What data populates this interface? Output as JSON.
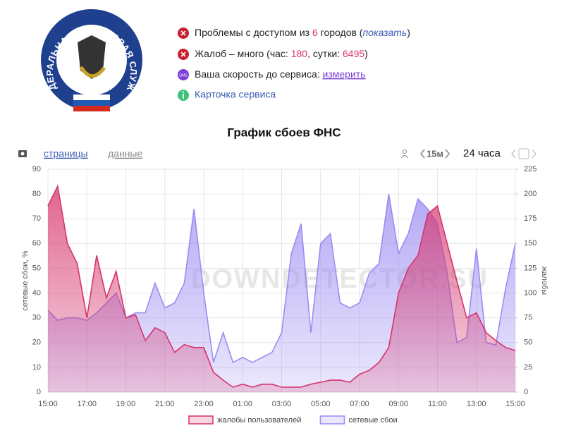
{
  "logo_text": "ФЕДЕРАЛЬНАЯ НАЛОГОВАЯ СЛУЖБА",
  "status": [
    {
      "text": "Проблемы с доступом из ",
      "count": 6,
      "text_after": " городов (",
      "link": "показать",
      "close": ")"
    },
    {
      "text": "Жалоб – много (час: ",
      "hour": 180,
      "text_mid": ", сутки: ",
      "day": 6495,
      "close": ")"
    },
    {
      "icon": "QMS",
      "text": "Ваша скорость до сервиса: ",
      "link": "измерить"
    },
    {
      "link": "Карточка сервиса"
    }
  ],
  "toolbar": {
    "tab_pages": "страницы",
    "tab_data": "данные",
    "interval": "15м",
    "range": "24 часа"
  },
  "chart_data": {
    "type": "area",
    "title": "График сбоев ФНС",
    "watermark": "DOWNDETECTOR.SU",
    "y_label": "сетевые сбои, %",
    "y2_label": "жалобы",
    "x": [
      0,
      0.5,
      1,
      1.5,
      2,
      2.5,
      3,
      3.5,
      4,
      4.5,
      5,
      5.5,
      6,
      6.5,
      7,
      7.5,
      8,
      8.5,
      9,
      9.5,
      10,
      10.5,
      11,
      11.5,
      12,
      12.5,
      13,
      13.5,
      14,
      14.5,
      15,
      15.5,
      16,
      16.5,
      17,
      17.5,
      18,
      18.5,
      19,
      19.5,
      20,
      20.5,
      21,
      21.5,
      22,
      22.5,
      23,
      23.5,
      24
    ],
    "xlim": [
      0,
      24
    ],
    "xticks": [
      {
        "value": 0,
        "label": "15:00"
      },
      {
        "value": 2,
        "label": "17:00"
      },
      {
        "value": 4,
        "label": "19:00"
      },
      {
        "value": 6,
        "label": "21:00"
      },
      {
        "value": 8,
        "label": "23:00"
      },
      {
        "value": 10,
        "label": "01:00"
      },
      {
        "value": 12,
        "label": "03:00"
      },
      {
        "value": 14,
        "label": "05:00"
      },
      {
        "value": 16,
        "label": "07:00"
      },
      {
        "value": 18,
        "label": "09:00"
      },
      {
        "value": 20,
        "label": "11:00"
      },
      {
        "value": 22,
        "label": "13:00"
      },
      {
        "value": 24,
        "label": "15:00"
      }
    ],
    "ylim": [
      0,
      90
    ],
    "yticks": [
      0,
      10,
      20,
      30,
      40,
      50,
      60,
      70,
      80,
      90
    ],
    "y2lim": [
      0,
      225
    ],
    "y2ticks": [
      0,
      25,
      50,
      75,
      100,
      125,
      150,
      175,
      200,
      225
    ],
    "grid": true,
    "series": [
      {
        "name": "сетевые сбои",
        "color": "#9b8cf2",
        "values": [
          33,
          29,
          30,
          30,
          29,
          32,
          36,
          40,
          30,
          32,
          32,
          44,
          34,
          36,
          44,
          74,
          40,
          12,
          24,
          12,
          14,
          12,
          14,
          16,
          24,
          56,
          68,
          24,
          60,
          64,
          36,
          34,
          36,
          48,
          52,
          80,
          56,
          64,
          78,
          74,
          68,
          48,
          20,
          22,
          58,
          20,
          19,
          42,
          60
        ]
      },
      {
        "name": "жалобы пользователей",
        "color": "#d6336c",
        "axis": "y2",
        "values": [
          188,
          208,
          150,
          130,
          75,
          138,
          95,
          122,
          75,
          78,
          52,
          65,
          60,
          40,
          48,
          45,
          45,
          20,
          12,
          5,
          8,
          5,
          8,
          8,
          5,
          5,
          5,
          8,
          10,
          12,
          12,
          10,
          18,
          22,
          30,
          45,
          100,
          125,
          138,
          180,
          188,
          150,
          112,
          75,
          80,
          60,
          52,
          45,
          42
        ]
      }
    ],
    "legend_order": [
      1,
      0
    ]
  }
}
